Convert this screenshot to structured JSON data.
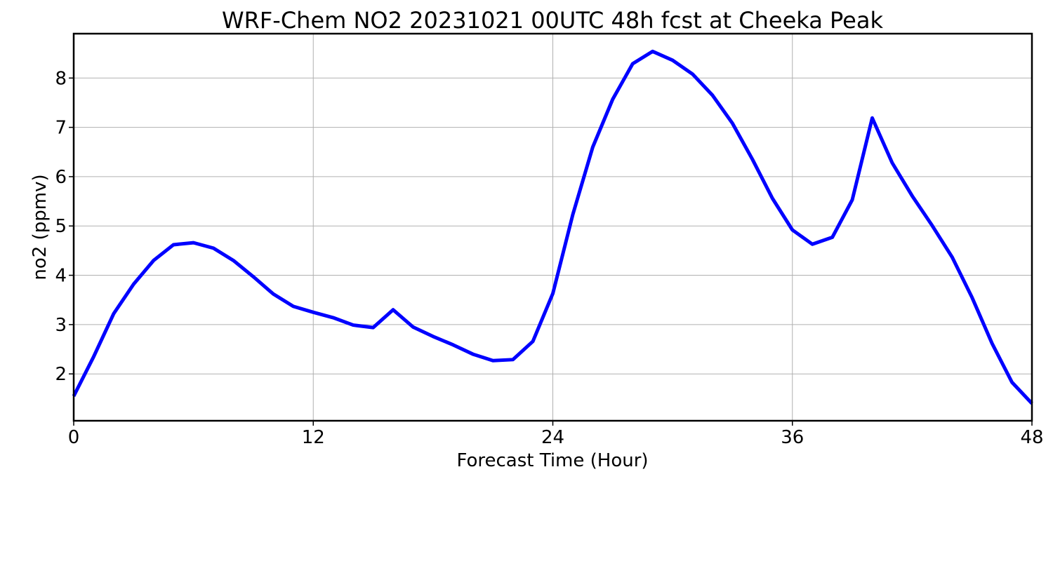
{
  "chart_data": {
    "type": "line",
    "title": "WRF-Chem NO2  20231021 00UTC 48h fcst at Cheeka Peak",
    "xlabel": "Forecast Time (Hour)",
    "ylabel": "no2  (ppmv)",
    "xlim": [
      0,
      48
    ],
    "ylim": [
      1.05,
      8.9
    ],
    "xticks": [
      0,
      12,
      24,
      36,
      48
    ],
    "yticks": [
      2,
      3,
      4,
      5,
      6,
      7,
      8
    ],
    "grid": true,
    "legend": "none",
    "series": [
      {
        "color": "#0000ff",
        "x": [
          0,
          1,
          2,
          3,
          4,
          5,
          6,
          7,
          8,
          9,
          10,
          11,
          12,
          13,
          14,
          15,
          16,
          17,
          18,
          19,
          20,
          21,
          22,
          23,
          24,
          25,
          26,
          27,
          28,
          29,
          30,
          31,
          32,
          33,
          34,
          35,
          36,
          37,
          38,
          39,
          40,
          41,
          42,
          43,
          44,
          45,
          46,
          47,
          48
        ],
        "values": [
          1.55,
          2.35,
          3.22,
          3.82,
          4.3,
          4.62,
          4.66,
          4.55,
          4.3,
          3.97,
          3.62,
          3.37,
          3.25,
          3.14,
          2.99,
          2.94,
          3.3,
          2.95,
          2.76,
          2.59,
          2.4,
          2.27,
          2.29,
          2.66,
          3.63,
          5.23,
          6.6,
          7.57,
          8.29,
          8.54,
          8.36,
          8.08,
          7.65,
          7.08,
          6.35,
          5.56,
          4.92,
          4.63,
          4.77,
          5.53,
          7.19,
          6.28,
          5.61,
          5.01,
          4.37,
          3.55,
          2.62,
          1.83,
          1.4
        ]
      }
    ]
  }
}
